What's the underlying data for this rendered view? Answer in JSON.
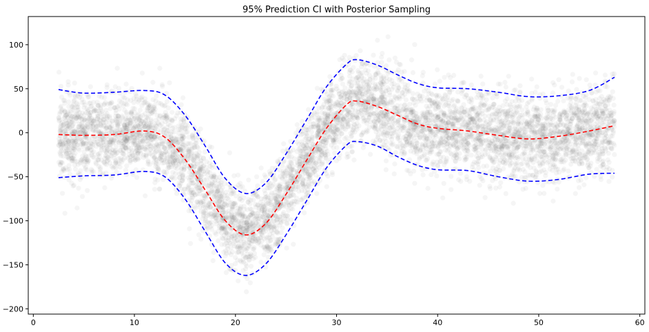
{
  "chart_data": {
    "type": "scatter",
    "title": "95% Prediction CI with Posterior Sampling",
    "xlabel": "",
    "ylabel": "",
    "xlim": [
      -0.5,
      60.5
    ],
    "ylim": [
      -206,
      132
    ],
    "xticks": [
      0,
      10,
      20,
      30,
      40,
      50,
      60
    ],
    "yticks": [
      -200,
      -150,
      -100,
      -50,
      0,
      50,
      100
    ],
    "grid": false,
    "legend": "none",
    "points": {
      "color": "#555555",
      "opacity": 0.06,
      "x_range": [
        2.5,
        57.5
      ],
      "approx_count": 6000
    },
    "series": [
      {
        "role": "mean",
        "style": "dashed",
        "color": "#ff0000",
        "x": [
          2.5,
          5,
          8,
          11,
          13,
          15,
          17,
          19,
          21,
          23,
          25,
          27,
          29,
          31,
          32,
          34,
          36,
          38,
          40,
          43,
          46,
          49,
          52,
          55,
          57.5
        ],
        "y": [
          -2,
          -3,
          -2,
          2,
          -5,
          -30,
          -65,
          -100,
          -116,
          -103,
          -70,
          -32,
          5,
          32,
          36,
          30,
          20,
          10,
          5,
          2,
          -3,
          -7,
          -4,
          2,
          8
        ]
      },
      {
        "role": "upper",
        "style": "dashed",
        "color": "#0000ff",
        "x": [
          2.5,
          5,
          8,
          11,
          13,
          15,
          17,
          19,
          21,
          23,
          25,
          27,
          29,
          31,
          32,
          34,
          36,
          38,
          40,
          43,
          46,
          49,
          52,
          55,
          57.5
        ],
        "y": [
          49,
          45,
          46,
          48,
          43,
          20,
          -15,
          -52,
          -69,
          -57,
          -24,
          14,
          52,
          78,
          83,
          77,
          66,
          56,
          51,
          50,
          46,
          41,
          42,
          48,
          63
        ]
      },
      {
        "role": "lower",
        "style": "dashed",
        "color": "#0000ff",
        "x": [
          2.5,
          5,
          8,
          11,
          13,
          15,
          17,
          19,
          21,
          23,
          25,
          27,
          29,
          31,
          32,
          34,
          36,
          38,
          40,
          43,
          46,
          49,
          52,
          55,
          57.5
        ],
        "y": [
          -51,
          -49,
          -48,
          -44,
          -50,
          -75,
          -112,
          -148,
          -162,
          -149,
          -116,
          -78,
          -40,
          -14,
          -10,
          -15,
          -27,
          -37,
          -42,
          -43,
          -50,
          -55,
          -53,
          -47,
          -46
        ]
      }
    ]
  }
}
